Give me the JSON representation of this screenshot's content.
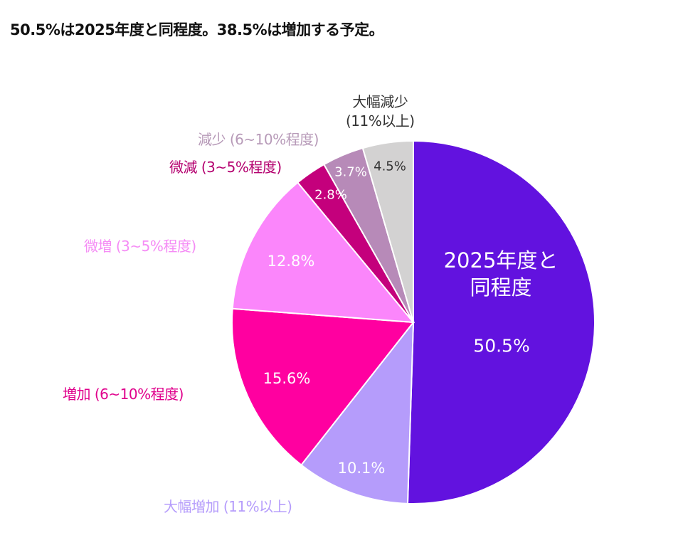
{
  "title": "50.5%は2025年度と同程度。38.5%は増加する予定。",
  "chart_data": {
    "type": "pie",
    "start": "top",
    "direction": "clockwise",
    "slices": [
      {
        "name": "2025年度と同程度",
        "name_lines": [
          "2025年度と",
          "同程度"
        ],
        "value": 50.5,
        "label": "50.5%",
        "color": "#6212DF",
        "text_color": "#ffffff"
      },
      {
        "name": "大幅増加 (11%以上)",
        "value": 10.1,
        "label": "10.1%",
        "color": "#B59CFB",
        "text_color": "#ffffff",
        "name_color": "#B59CFB"
      },
      {
        "name": "増加 (6~10%程度)",
        "value": 15.6,
        "label": "15.6%",
        "color": "#FF00A0",
        "text_color": "#ffffff",
        "name_color": "#E0008C"
      },
      {
        "name": "微増 (3~5%程度)",
        "value": 12.8,
        "label": "12.8%",
        "color": "#FB86FB",
        "text_color": "#ffffff",
        "name_color": "#F58CF5"
      },
      {
        "name": "微減 (3~5%程度)",
        "value": 2.8,
        "label": "2.8%",
        "color": "#C4007C",
        "text_color": "#ffffff",
        "name_color": "#B4006F"
      },
      {
        "name": "減少 (6~10%程度)",
        "value": 3.7,
        "label": "3.7%",
        "color": "#B78AB8",
        "text_color": "#ffffff",
        "name_color": "#B79AB8"
      },
      {
        "name": "大幅減少 (11%以上)",
        "name_lines": [
          "大幅減少",
          "(11%以上)"
        ],
        "value": 4.5,
        "label": "4.5%",
        "color": "#D3D2D2",
        "text_color": "#333333",
        "name_color": "#333333"
      }
    ]
  }
}
